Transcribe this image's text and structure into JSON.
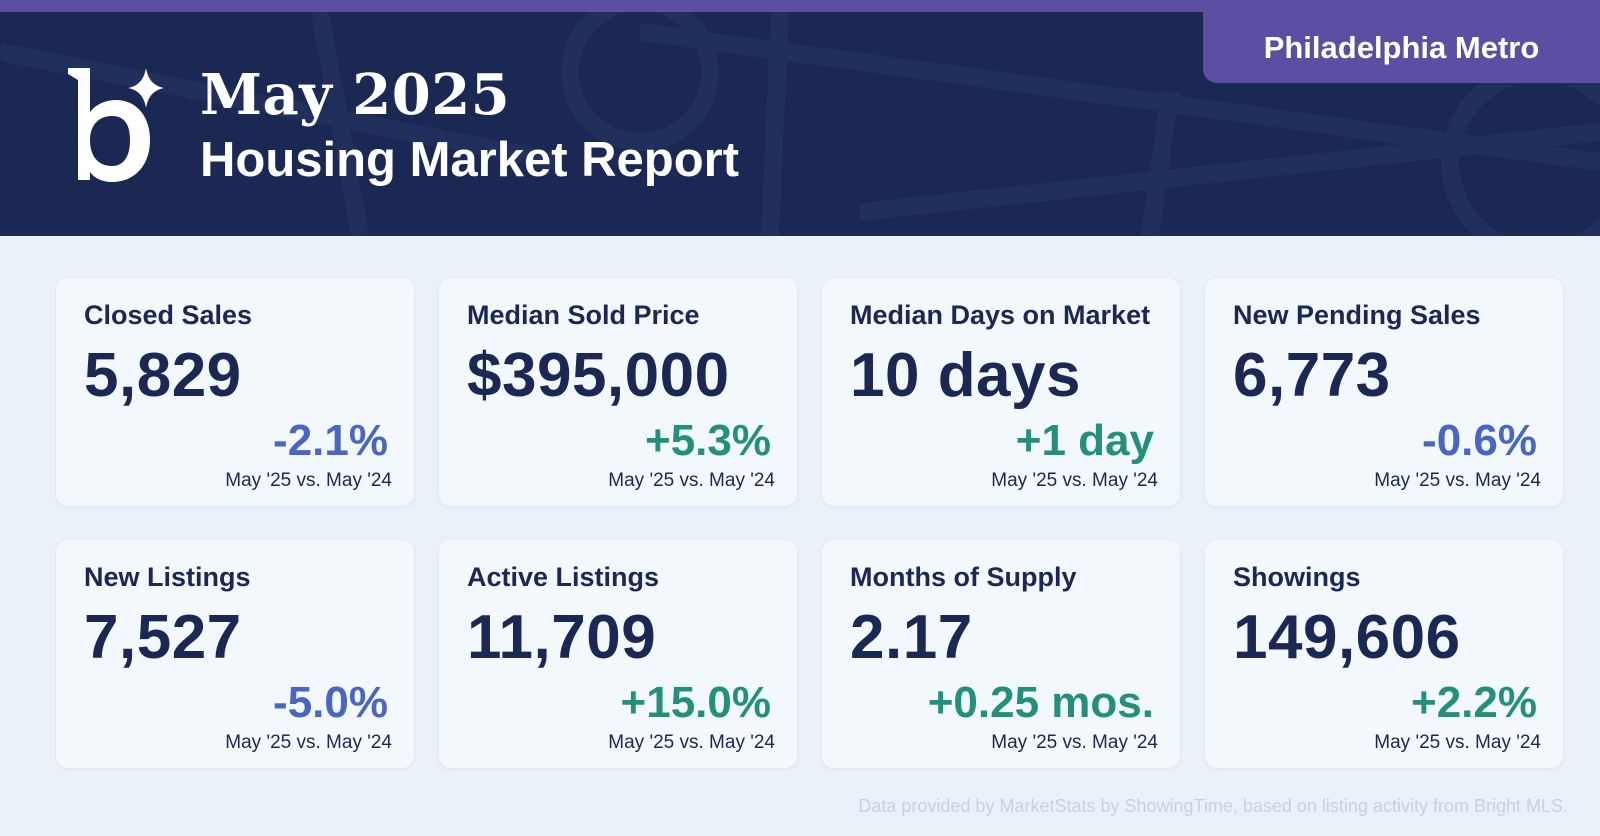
{
  "header": {
    "month": "May 2025",
    "subtitle": "Housing Market Report",
    "region": "Philadelphia Metro",
    "logo_icon": "brand-b-sparkle-logo"
  },
  "colors": {
    "navy": "#1b2853",
    "purple": "#5b4ea3",
    "page_bg": "#eaf1f9",
    "card_bg": "#f3f8fd",
    "negative": "#4967c2",
    "positive": "#22907a"
  },
  "metrics": [
    {
      "label": "Closed Sales",
      "value": "5,829",
      "change": "-2.1%",
      "direction": "negative",
      "period": "May '25 vs. May '24"
    },
    {
      "label": "Median Sold Price",
      "value": "$395,000",
      "change": "+5.3%",
      "direction": "positive",
      "period": "May '25 vs. May '24"
    },
    {
      "label": "Median Days on Market",
      "value": "10 days",
      "change": "+1 day",
      "direction": "positive",
      "period": "May '25 vs. May '24"
    },
    {
      "label": "New Pending Sales",
      "value": "6,773",
      "change": "-0.6%",
      "direction": "negative",
      "period": "May '25 vs. May '24"
    },
    {
      "label": "New Listings",
      "value": "7,527",
      "change": "-5.0%",
      "direction": "negative",
      "period": "May '25 vs. May '24"
    },
    {
      "label": "Active Listings",
      "value": "11,709",
      "change": "+15.0%",
      "direction": "positive",
      "period": "May '25 vs. May '24"
    },
    {
      "label": "Months of Supply",
      "value": "2.17",
      "change": "+0.25 mos.",
      "direction": "positive",
      "period": "May '25 vs. May '24"
    },
    {
      "label": "Showings",
      "value": "149,606",
      "change": "+2.2%",
      "direction": "positive",
      "period": "May '25 vs. May '24"
    }
  ],
  "footer": {
    "source": "Data provided by MarketStats by ShowingTime, based on listing activity from Bright MLS."
  }
}
